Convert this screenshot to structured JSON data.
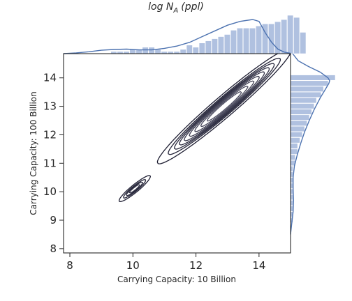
{
  "chart_data": {
    "type": "joint_kde_histogram",
    "title_main": "log N",
    "title_sub": "A",
    "title_tail": "(ppl)",
    "xlabel": "Carrying Capacity: 10 Billion",
    "ylabel": "Carrying Capacity: 100 Billion",
    "xlim": [
      7.8,
      15.0
    ],
    "ylim": [
      7.85,
      14.85
    ],
    "xticks": [
      8,
      10,
      12,
      14
    ],
    "yticks": [
      8,
      9,
      10,
      11,
      12,
      13,
      14
    ],
    "colors": {
      "contour": "#1e1e2e",
      "hist": "#b0c1e0",
      "kde": "#4c72b0",
      "axis": "#262626"
    },
    "kde_components": [
      {
        "weight": 0.965,
        "mean": [
          12.9,
          13.0
        ],
        "sd": [
          0.82,
          0.78
        ],
        "rho": 0.972
      },
      {
        "weight": 0.035,
        "mean": [
          10.05,
          10.1
        ],
        "sd": [
          0.24,
          0.22
        ],
        "rho": 0.93
      }
    ],
    "contour_levels": [
      0.035,
      0.095,
      0.155,
      0.22,
      0.3,
      0.4,
      0.52,
      0.66,
      0.8
    ],
    "top_hist": {
      "bin_start": 7.9,
      "bin_width": 0.2,
      "counts": [
        0,
        0,
        0,
        0,
        0,
        0,
        0,
        1,
        1,
        1,
        2,
        2,
        3,
        3,
        2,
        1,
        1,
        1,
        2,
        4,
        3,
        5,
        6,
        7,
        8,
        9,
        11,
        12,
        12,
        12,
        13,
        14,
        14,
        15,
        16,
        18,
        17,
        10
      ]
    },
    "top_kde": {
      "x": [
        7.8,
        8.2,
        8.6,
        9.0,
        9.4,
        9.8,
        10.2,
        10.6,
        11.0,
        11.4,
        11.8,
        12.2,
        12.6,
        13.0,
        13.4,
        13.8,
        14.0,
        14.2,
        14.4,
        14.6,
        14.8,
        15.0
      ],
      "y": [
        0.0,
        0.02,
        0.05,
        0.09,
        0.11,
        0.12,
        0.1,
        0.1,
        0.14,
        0.2,
        0.3,
        0.45,
        0.6,
        0.75,
        0.85,
        0.9,
        0.85,
        0.55,
        0.3,
        0.12,
        0.04,
        0.01
      ]
    },
    "right_hist": {
      "bin_start": 8.7,
      "bin_width": 0.2,
      "counts": [
        0,
        1,
        1,
        1,
        1,
        1,
        1,
        1,
        1,
        1,
        1,
        2,
        2,
        3,
        3,
        4,
        5,
        6,
        7,
        8,
        9,
        10,
        11,
        13,
        14,
        16,
        19
      ]
    },
    "right_kde": {
      "y": [
        8.5,
        8.9,
        9.3,
        9.7,
        10.1,
        10.5,
        10.9,
        11.3,
        11.7,
        12.1,
        12.5,
        12.9,
        13.3,
        13.6,
        13.8,
        13.9,
        14.0,
        14.2,
        14.4,
        14.6,
        14.85
      ],
      "x": [
        0.0,
        0.03,
        0.06,
        0.07,
        0.06,
        0.06,
        0.09,
        0.16,
        0.24,
        0.33,
        0.44,
        0.56,
        0.7,
        0.82,
        0.9,
        0.92,
        0.88,
        0.7,
        0.42,
        0.18,
        0.05
      ]
    }
  }
}
